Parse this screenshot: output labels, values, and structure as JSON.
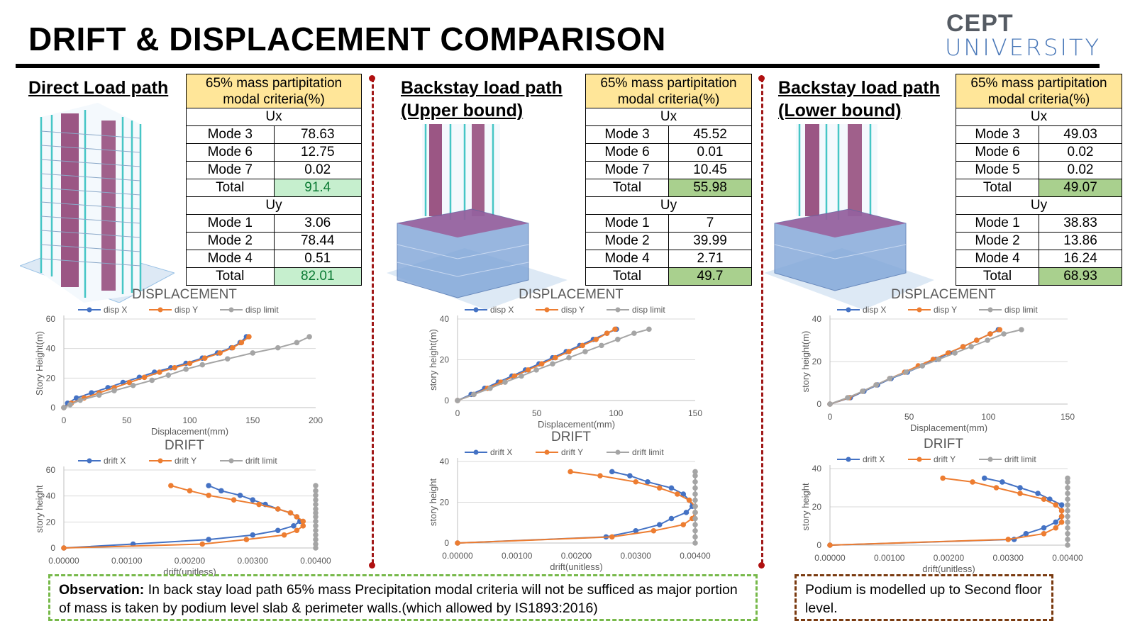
{
  "page_title": "DRIFT & DISPLACEMENT COMPARISON",
  "logo": {
    "line1": "CEPT",
    "line2": "UNIVERSITY"
  },
  "panels": [
    {
      "title": "Direct Load path",
      "table": {
        "header": "65% mass partipitation modal criteria(%)",
        "ux_label": "Ux",
        "ux_rows": [
          [
            "Mode 3",
            "78.63"
          ],
          [
            "Mode 6",
            "12.75"
          ],
          [
            "Mode 7",
            "0.02"
          ]
        ],
        "ux_total": [
          "Total",
          "91.4"
        ],
        "uy_label": "Uy",
        "uy_rows": [
          [
            "Mode 1",
            "3.06"
          ],
          [
            "Mode 2",
            "78.44"
          ],
          [
            "Mode 4",
            "0.51"
          ]
        ],
        "uy_total": [
          "Total",
          "82.01"
        ]
      }
    },
    {
      "title": "Backstay load path (Upper bound)",
      "table": {
        "header": "65% mass partipitation modal criteria(%)",
        "ux_label": "Ux",
        "ux_rows": [
          [
            "Mode 3",
            "45.52"
          ],
          [
            "Mode 6",
            "0.01"
          ],
          [
            "Mode 7",
            "10.45"
          ]
        ],
        "ux_total": [
          "Total",
          "55.98"
        ],
        "uy_label": "Uy",
        "uy_rows": [
          [
            "Mode 1",
            "7"
          ],
          [
            "Mode 2",
            "39.99"
          ],
          [
            "Mode 4",
            "2.71"
          ]
        ],
        "uy_total": [
          "Total",
          "49.7"
        ]
      }
    },
    {
      "title": "Backstay load path (Lower bound)",
      "table": {
        "header": "65% mass partipitation modal criteria(%)",
        "ux_label": "Ux",
        "ux_rows": [
          [
            "Mode 3",
            "49.03"
          ],
          [
            "Mode 6",
            "0.02"
          ],
          [
            "Mode 5",
            "0.02"
          ]
        ],
        "ux_total": [
          "Total",
          "49.07"
        ],
        "uy_label": "Uy",
        "uy_rows": [
          [
            "Mode 1",
            "38.83"
          ],
          [
            "Mode 2",
            "13.86"
          ],
          [
            "Mode 4",
            "16.24"
          ]
        ],
        "uy_total": [
          "Total",
          "68.93"
        ]
      }
    }
  ],
  "colors": {
    "disp_x": "#4472c4",
    "disp_y": "#ed7d31",
    "limit": "#a5a5a5",
    "header_fill": "#ffe699",
    "total_fill": "#a9d08e",
    "total_light": "#c6efce"
  },
  "chart_data": [
    {
      "type": "line",
      "title": "DISPLACEMENT",
      "xlabel": "Displacement(mm)",
      "ylabel": "Story Height(m)",
      "xlim": [
        0,
        200
      ],
      "ylim": [
        0,
        60
      ],
      "xticks": [
        "0",
        "50",
        "100",
        "150",
        "200"
      ],
      "yticks": [
        "0",
        "20",
        "40",
        "60"
      ],
      "grid": "horizontal",
      "legend": "top",
      "series": [
        {
          "name": "disp X",
          "x": [
            0,
            3,
            10,
            22,
            35,
            47,
            60,
            72,
            85,
            97,
            110,
            122,
            133,
            140,
            145
          ],
          "y": [
            0,
            3,
            6.5,
            10,
            13.5,
            17,
            20.5,
            24,
            27,
            30,
            33.5,
            37,
            40.5,
            44,
            48
          ]
        },
        {
          "name": "disp Y",
          "x": [
            0,
            6,
            16,
            28,
            40,
            52,
            64,
            76,
            88,
            100,
            112,
            124,
            134,
            141,
            147
          ],
          "y": [
            0,
            3,
            6.5,
            10,
            13.5,
            17,
            20.5,
            24,
            27,
            30,
            33.5,
            37,
            40.5,
            44,
            48
          ]
        },
        {
          "name": "disp limit",
          "x": [
            0,
            5,
            13,
            28,
            40,
            55,
            70,
            83,
            97,
            110,
            130,
            150,
            170,
            185,
            195
          ],
          "y": [
            0,
            2,
            5,
            8.5,
            11.5,
            15,
            18.5,
            22,
            26,
            29,
            33,
            37,
            40.5,
            44,
            48
          ]
        }
      ]
    },
    {
      "type": "line",
      "title": "DRIFT",
      "xlabel": "drift(unitless)",
      "ylabel": "story height",
      "xlim": [
        0,
        0.004
      ],
      "ylim": [
        0,
        60
      ],
      "xticks": [
        "0.00000",
        "0.00100",
        "0.00200",
        "0.00300",
        "0.00400"
      ],
      "yticks": [
        "0",
        "20",
        "40",
        "60"
      ],
      "grid": "horizontal",
      "legend": "top",
      "series": [
        {
          "name": "drift X",
          "x": [
            0,
            0.0011,
            0.0023,
            0.003,
            0.0034,
            0.00365,
            0.00375,
            0.0037,
            0.0036,
            0.0034,
            0.0032,
            0.003,
            0.0028,
            0.0025,
            0.0023
          ],
          "y": [
            0,
            3,
            6.5,
            10,
            13.5,
            17,
            20.5,
            24,
            27,
            30,
            33.5,
            37,
            40.5,
            44,
            48
          ]
        },
        {
          "name": "drift Y",
          "x": [
            0,
            0.0022,
            0.0029,
            0.0035,
            0.0037,
            0.0038,
            0.0038,
            0.0037,
            0.0036,
            0.0034,
            0.0031,
            0.0027,
            0.0023,
            0.002,
            0.0017
          ],
          "y": [
            0,
            3,
            6.5,
            10,
            13.5,
            17,
            20.5,
            24,
            27,
            30,
            33.5,
            37,
            40.5,
            44,
            48
          ]
        },
        {
          "name": "drift limit",
          "x": [
            0.004,
            0.004,
            0.004,
            0.004,
            0.004,
            0.004,
            0.004,
            0.004,
            0.004,
            0.004,
            0.004,
            0.004,
            0.004,
            0.004,
            0.004
          ],
          "y": [
            0,
            3,
            6.5,
            10,
            13.5,
            17,
            20.5,
            24,
            27,
            30,
            33.5,
            37,
            40.5,
            44,
            48
          ]
        }
      ]
    },
    {
      "type": "line",
      "title": "DISPLACEMENT",
      "xlabel": "Displacement(mm)",
      "ylabel": "story height(m)",
      "xlim": [
        0,
        175
      ],
      "ylim": [
        0,
        40
      ],
      "xticks": [
        "0",
        "50",
        "100",
        "150"
      ],
      "yticks": [
        "0",
        "20",
        "40"
      ],
      "grid": "horizontal",
      "legend": "top",
      "series": [
        {
          "name": "disp X",
          "x": [
            0,
            10,
            20,
            30,
            40,
            50,
            60,
            70,
            80,
            90,
            100,
            110,
            117
          ],
          "y": [
            0,
            3,
            6,
            9,
            12,
            15,
            18,
            21,
            24,
            27,
            30,
            33,
            35
          ]
        },
        {
          "name": "disp Y",
          "x": [
            0,
            12,
            22,
            32,
            42,
            52,
            62,
            72,
            82,
            92,
            102,
            110,
            116
          ],
          "y": [
            0,
            3,
            6,
            9,
            12,
            15,
            18,
            21,
            24,
            27,
            30,
            33,
            35
          ]
        },
        {
          "name": "disp limit",
          "x": [
            0,
            12,
            24,
            35,
            47,
            58,
            70,
            82,
            94,
            106,
            118,
            130,
            141
          ],
          "y": [
            0,
            3,
            6,
            9,
            12,
            15,
            18,
            21,
            24,
            27,
            30,
            33,
            35
          ]
        }
      ]
    },
    {
      "type": "line",
      "title": "DRIFT",
      "xlabel": "drift(unitless)",
      "ylabel": "story height",
      "xlim": [
        0,
        0.004
      ],
      "ylim": [
        0,
        40
      ],
      "xticks": [
        "0.00000",
        "0.00100",
        "0.00200",
        "0.00300",
        "0.00400"
      ],
      "yticks": [
        "0",
        "20",
        "40"
      ],
      "grid": "horizontal",
      "legend": "top",
      "series": [
        {
          "name": "drift X",
          "x": [
            0,
            0.0025,
            0.003,
            0.0034,
            0.0036,
            0.00385,
            0.00395,
            0.0039,
            0.0038,
            0.0036,
            0.0032,
            0.0029,
            0.0026
          ],
          "y": [
            0,
            3,
            6,
            9,
            12,
            15,
            18,
            21,
            24,
            27,
            30,
            33,
            35
          ]
        },
        {
          "name": "drift Y",
          "x": [
            0,
            0.0026,
            0.0033,
            0.0038,
            0.00395,
            0.004,
            0.004,
            0.0039,
            0.0037,
            0.0034,
            0.003,
            0.0024,
            0.0019
          ],
          "y": [
            0,
            3,
            6,
            9,
            12,
            15,
            18,
            21,
            24,
            27,
            30,
            33,
            35
          ]
        },
        {
          "name": "drift limit",
          "x": [
            0.004,
            0.004,
            0.004,
            0.004,
            0.004,
            0.004,
            0.004,
            0.004,
            0.004,
            0.004,
            0.004,
            0.004,
            0.004
          ],
          "y": [
            0,
            3,
            6,
            9,
            12,
            15,
            18,
            21,
            24,
            27,
            30,
            33,
            35
          ]
        }
      ]
    },
    {
      "type": "line",
      "title": "DISPLACEMENT",
      "xlabel": "Displacement(mm)",
      "ylabel": "story height(m)",
      "xlim": [
        0,
        175
      ],
      "ylim": [
        0,
        40
      ],
      "xticks": [
        "0",
        "50",
        "100",
        "150"
      ],
      "yticks": [
        "0",
        "20",
        "40"
      ],
      "grid": "horizontal",
      "legend": "top",
      "series": [
        {
          "name": "disp X",
          "x": [
            0,
            15,
            25,
            35,
            45,
            57,
            68,
            78,
            88,
            98,
            108,
            118,
            124
          ],
          "y": [
            0,
            3,
            6,
            9,
            12,
            15,
            18,
            21,
            24,
            27,
            30,
            33,
            35
          ]
        },
        {
          "name": "disp Y",
          "x": [
            0,
            14,
            24,
            34,
            44,
            55,
            65,
            76,
            87,
            98,
            108,
            118,
            125
          ],
          "y": [
            0,
            3,
            6,
            9,
            12,
            15,
            18,
            21,
            24,
            27,
            30,
            33,
            35
          ]
        },
        {
          "name": "disp limit",
          "x": [
            0,
            13,
            24,
            34,
            44,
            56,
            68,
            80,
            92,
            104,
            116,
            128,
            141
          ],
          "y": [
            0,
            3,
            6,
            9,
            12,
            15,
            18,
            21,
            24,
            27,
            30,
            33,
            35
          ]
        }
      ]
    },
    {
      "type": "line",
      "title": "DRIFT",
      "xlabel": "drift(unitless)",
      "ylabel": "story height",
      "xlim": [
        0,
        0.004
      ],
      "ylim": [
        0,
        40
      ],
      "xticks": [
        "0.00000",
        "0.00100",
        "0.00200",
        "0.00300",
        "0.00400"
      ],
      "yticks": [
        "0",
        "20",
        "40"
      ],
      "grid": "horizontal",
      "legend": "top",
      "series": [
        {
          "name": "drift X",
          "x": [
            0,
            0.0031,
            0.0033,
            0.0036,
            0.0038,
            0.0039,
            0.0039,
            0.0039,
            0.0037,
            0.0035,
            0.0032,
            0.0029,
            0.0026
          ],
          "y": [
            0,
            3,
            6,
            9,
            12,
            15,
            18,
            21,
            24,
            27,
            30,
            33,
            35
          ]
        },
        {
          "name": "drift Y",
          "x": [
            0,
            0.003,
            0.0036,
            0.0038,
            0.0039,
            0.0039,
            0.0039,
            0.0038,
            0.0036,
            0.0032,
            0.0028,
            0.0024,
            0.0019
          ],
          "y": [
            0,
            3,
            6,
            9,
            12,
            15,
            18,
            21,
            24,
            27,
            30,
            33,
            35
          ]
        },
        {
          "name": "drift limit",
          "x": [
            0.004,
            0.004,
            0.004,
            0.004,
            0.004,
            0.004,
            0.004,
            0.004,
            0.004,
            0.004,
            0.004,
            0.004,
            0.004
          ],
          "y": [
            0,
            3,
            6,
            9,
            12,
            15,
            18,
            21,
            24,
            27,
            30,
            33,
            35
          ]
        }
      ]
    }
  ],
  "observation": {
    "label": "Observation:",
    "text": " In back stay load path 65% mass Precipitation modal criteria will not be sufficed as major portion of mass is taken by podium level slab & perimeter walls.(which allowed by IS1893:2016)"
  },
  "note": "Podium is modelled up to Second floor level."
}
